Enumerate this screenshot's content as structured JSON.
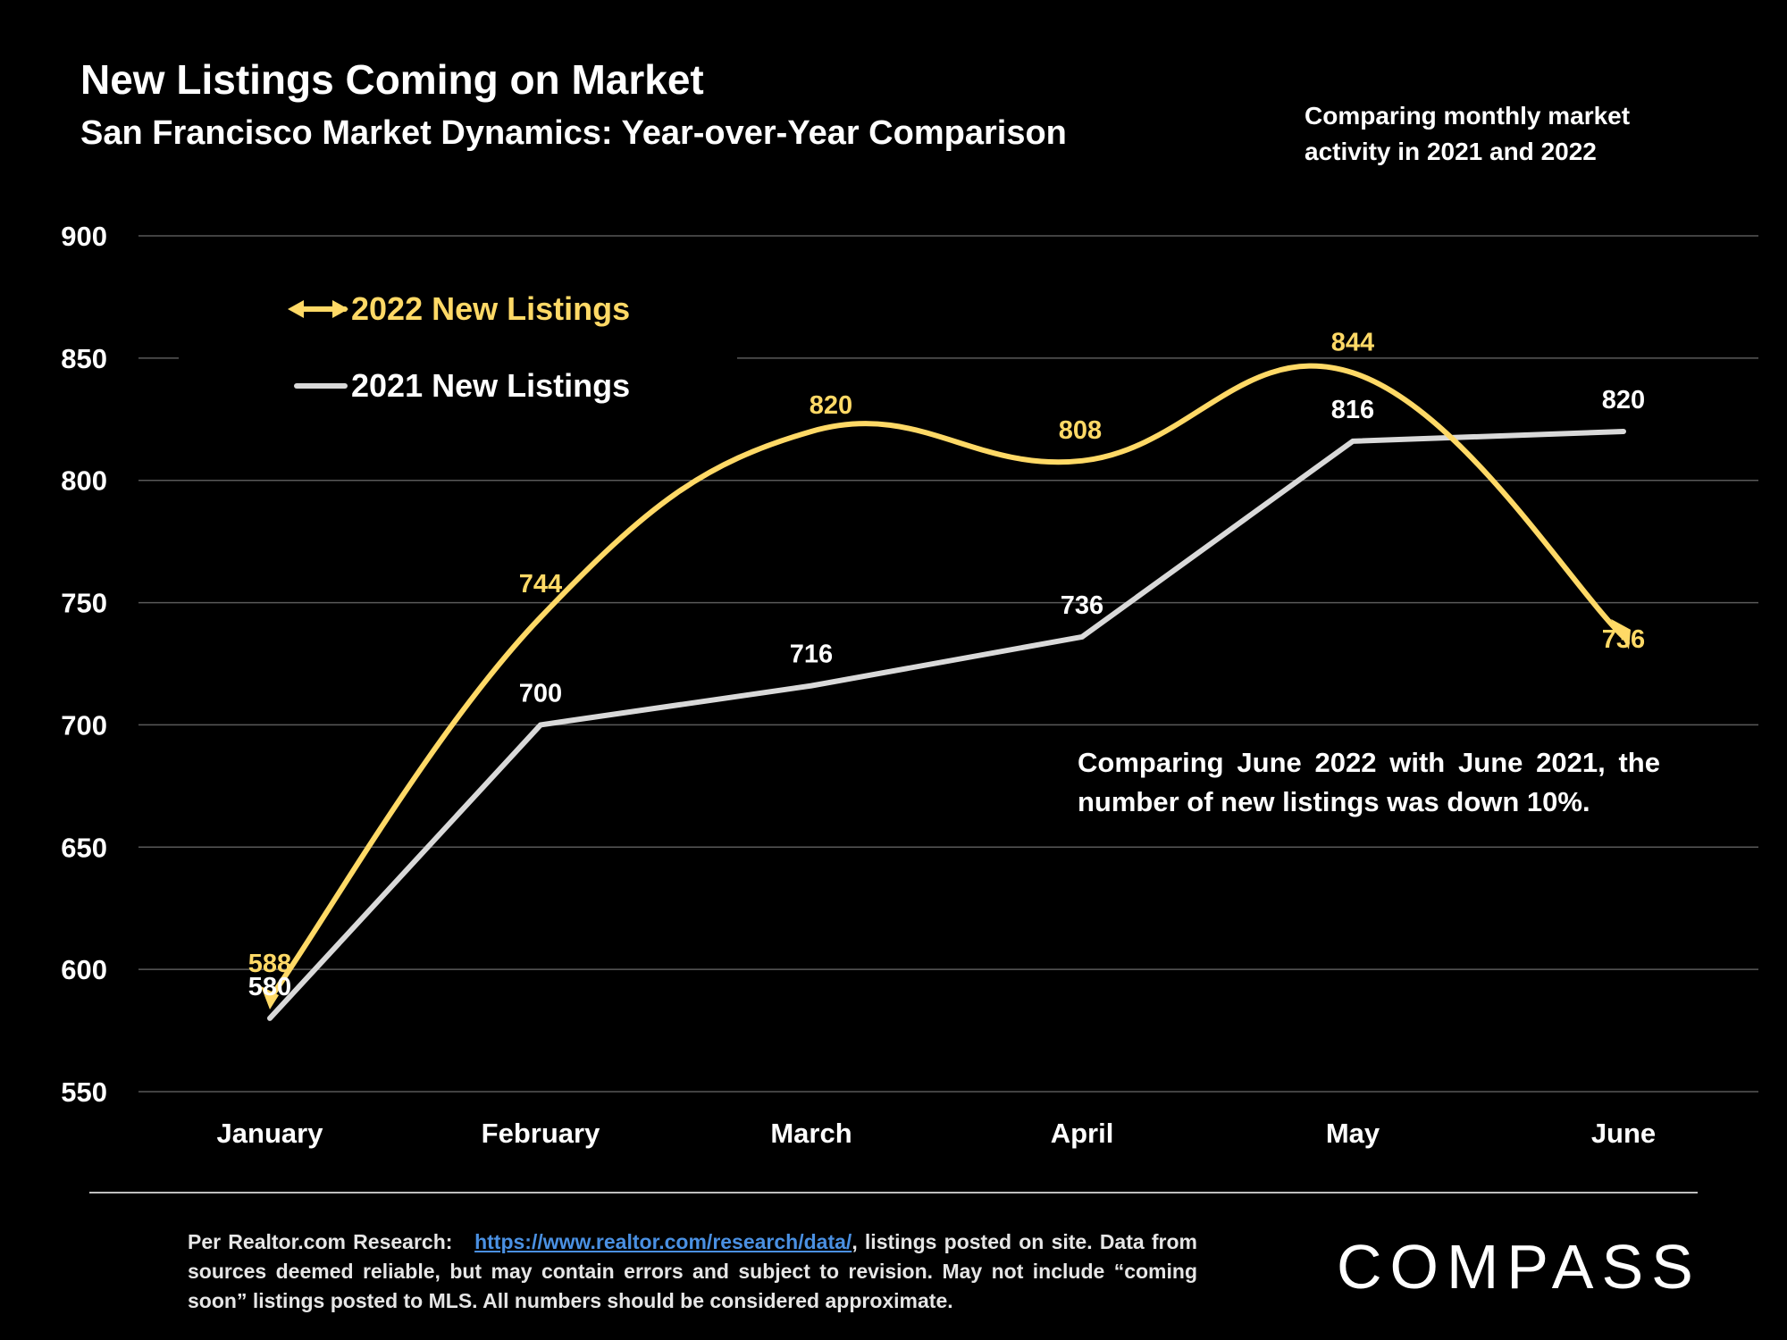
{
  "header": {
    "title": "New Listings Coming on Market",
    "subtitle": "San Francisco Market Dynamics: Year-over-Year Comparison",
    "side_note_line1": "Comparing monthly market",
    "side_note_line2": "activity in 2021 and 2022"
  },
  "chart_data": {
    "type": "line",
    "categories": [
      "January",
      "February",
      "March",
      "April",
      "May",
      "June"
    ],
    "ylim": [
      550,
      900
    ],
    "yticks": [
      550,
      600,
      650,
      700,
      750,
      800,
      850,
      900
    ],
    "grid": true,
    "legend_position": "top-left",
    "series": [
      {
        "name": "2022 New Listings",
        "values": [
          588,
          744,
          820,
          808,
          844,
          736
        ],
        "color": "#FFD966",
        "smooth": true,
        "arrow_markers": true
      },
      {
        "name": "2021 New Listings",
        "values": [
          580,
          700,
          716,
          736,
          816,
          820
        ],
        "color": "#D9D9D9",
        "smooth": false,
        "arrow_markers": false
      }
    ]
  },
  "callout": {
    "text": "Comparing June 2022 with June 2021, the number of new listings was down 10%."
  },
  "footer": {
    "source_prefix": "Per Realtor.com Research:",
    "source_link": "https://www.realtor.com/research/data/",
    "source_suffix": ", listings posted on site. Data from sources deemed reliable, but may contain errors and subject to revision. May not include “coming soon” listings posted to MLS. All numbers should be considered approximate.",
    "logo_text": "COMPASS"
  },
  "colors": {
    "background": "#000000",
    "text": "#FFFFFF",
    "gridline": "#595959",
    "link": "#4A90E2"
  }
}
